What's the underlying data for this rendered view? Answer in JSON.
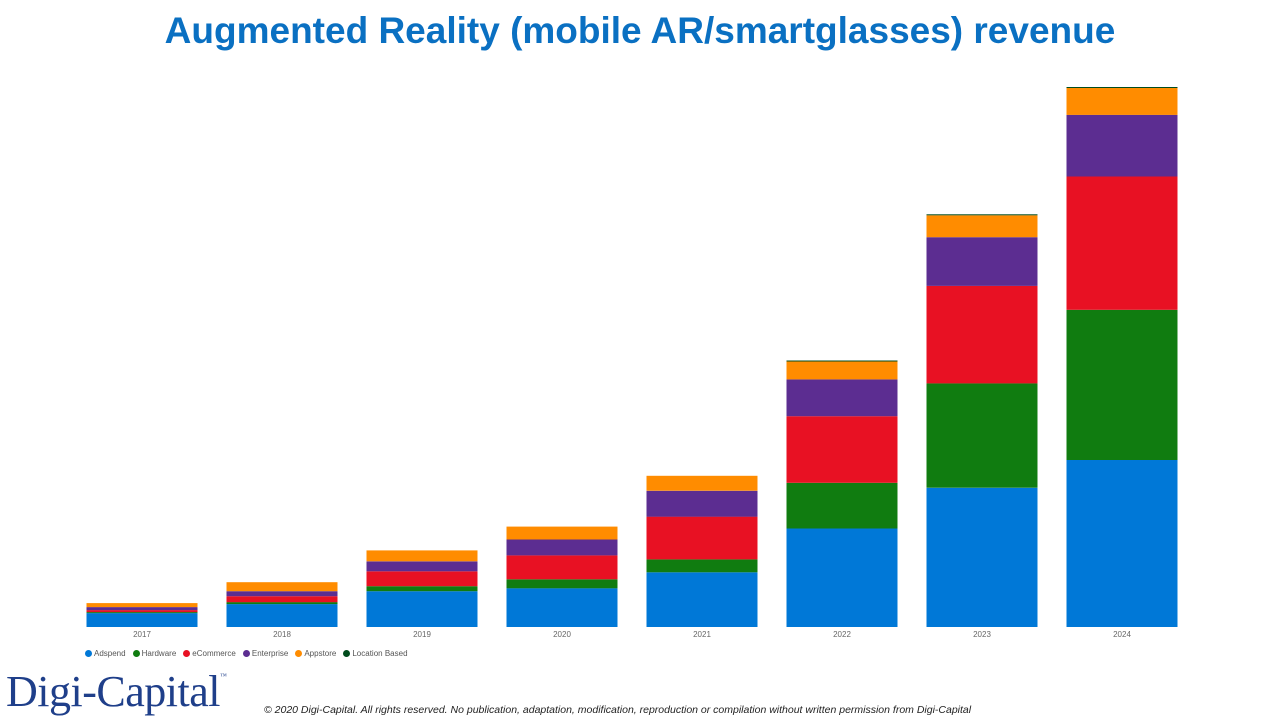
{
  "title": "Augmented Reality (mobile AR/smartglasses) revenue",
  "chart_data": {
    "type": "bar",
    "stacked": true,
    "title": "Augmented Reality (mobile AR/smartglasses) revenue",
    "categories": [
      "2017",
      "2018",
      "2019",
      "2020",
      "2021",
      "2022",
      "2023",
      "2024"
    ],
    "ylim": [
      0,
      545
    ],
    "y_axis_visible": false,
    "grid": false,
    "legend_position": "bottom-left",
    "series": [
      {
        "name": "Adspend",
        "color": "#0078d7",
        "values": [
          14,
          23,
          36,
          39,
          55,
          99,
          140,
          168
        ]
      },
      {
        "name": "Hardware",
        "color": "#107c10",
        "values": [
          1,
          2,
          5,
          9,
          13,
          46,
          105,
          151
        ]
      },
      {
        "name": "eCommerce",
        "color": "#e81123",
        "values": [
          2,
          6,
          15,
          24,
          43,
          67,
          98,
          134
        ]
      },
      {
        "name": "Enterprise",
        "color": "#5c2d91",
        "values": [
          3,
          5,
          10,
          16,
          26,
          37,
          49,
          62
        ]
      },
      {
        "name": "Appstore",
        "color": "#ff8c00",
        "values": [
          4,
          9,
          11,
          13,
          15,
          18,
          22,
          27
        ]
      },
      {
        "name": "Location Based",
        "color": "#004b1c",
        "values": [
          0,
          0,
          0,
          0,
          0,
          1,
          1,
          1
        ]
      }
    ]
  },
  "legend": [
    {
      "label": "Adspend",
      "color": "#0078d7"
    },
    {
      "label": "Hardware",
      "color": "#107c10"
    },
    {
      "label": "eCommerce",
      "color": "#e81123"
    },
    {
      "label": "Enterprise",
      "color": "#5c2d91"
    },
    {
      "label": "Appstore",
      "color": "#ff8c00"
    },
    {
      "label": "Location Based",
      "color": "#004b1c"
    }
  ],
  "logo": {
    "text": "Digi-Capital",
    "tm": "™"
  },
  "copyright": "© 2020 Digi-Capital. All rights reserved. No publication, adaptation, modification, reproduction or compilation without written permission from Digi-Capital"
}
